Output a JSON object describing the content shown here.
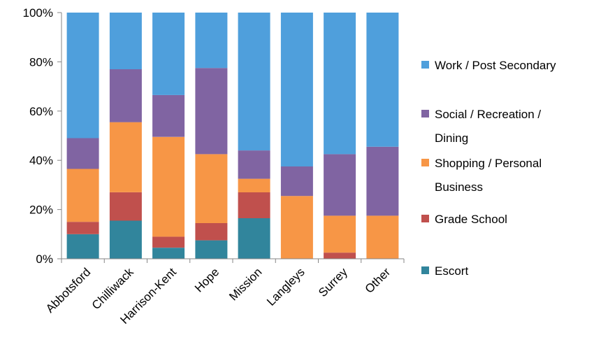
{
  "chart_data": {
    "type": "bar",
    "stacked": "percent",
    "categories": [
      "Abbotsford",
      "Chilliwack",
      "Harrison-Kent",
      "Hope",
      "Mission",
      "Langleys",
      "Surrey",
      "Other"
    ],
    "series": [
      {
        "name": "Escort",
        "color": "#31859c",
        "values": [
          10,
          15.5,
          4.5,
          7.5,
          16.5,
          0,
          0,
          0
        ]
      },
      {
        "name": "Grade School",
        "color": "#c0504d",
        "values": [
          5,
          11.5,
          4.5,
          7,
          10.5,
          0,
          2.5,
          0
        ]
      },
      {
        "name": "Shopping / Personal Business",
        "color": "#f79646",
        "values": [
          21.5,
          28.5,
          40.5,
          28,
          5.5,
          25.5,
          15,
          17.5
        ]
      },
      {
        "name": "Social / Recreation / Dining",
        "color": "#8064a2",
        "values": [
          12.5,
          21.5,
          17,
          35,
          11.5,
          12,
          25,
          28
        ]
      },
      {
        "name": "Work / Post Secondary",
        "color": "#4f9fdc",
        "values": [
          51,
          23,
          33.5,
          22.5,
          56,
          62.5,
          57.5,
          54.5
        ]
      }
    ],
    "legend_entries": [
      {
        "series": 4,
        "lines": [
          "Work / Post Secondary"
        ]
      },
      {
        "series": 3,
        "lines": [
          "Social / Recreation /",
          "Dining"
        ]
      },
      {
        "series": 2,
        "lines": [
          "Shopping / Personal",
          "Business"
        ]
      },
      {
        "series": 1,
        "lines": [
          "Grade School"
        ]
      },
      {
        "series": 0,
        "lines": [
          "Escort"
        ]
      }
    ],
    "y_ticks": [
      "0%",
      "20%",
      "40%",
      "60%",
      "80%",
      "100%"
    ],
    "ylim": [
      0,
      100
    ],
    "legend_position": "right",
    "grid": false
  }
}
